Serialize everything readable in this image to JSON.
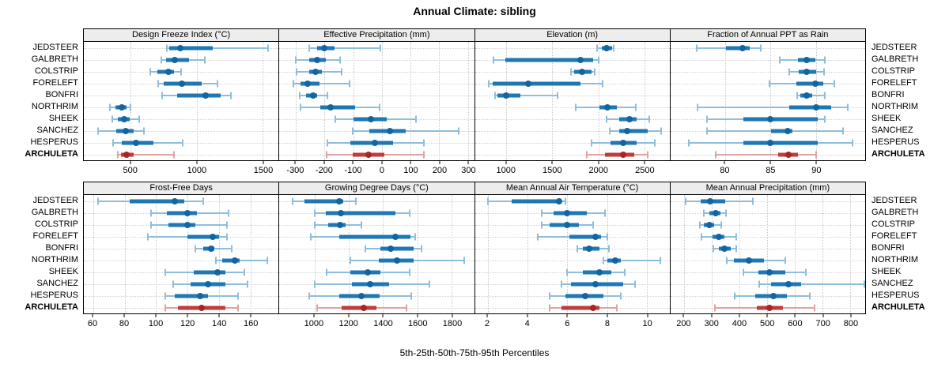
{
  "title": "Annual Climate: sibling",
  "caption": "5th-25th-50th-75th-95th Percentiles",
  "sites": [
    "JEDSTEER",
    "GALBRETH",
    "COLSTRIP",
    "FORELEFT",
    "BONFRI",
    "NORTHRIM",
    "SHEEK",
    "SANCHEZ",
    "HESPERUS",
    "ARCHULETA"
  ],
  "highlight_site": "ARCHULETA",
  "colors": {
    "normal_box": "#1f77b4",
    "normal_whisker": "#8fbedd",
    "normal_dot": "#14649f",
    "highlight_box": "#c23b3b",
    "highlight_whisker": "#e0a3a3",
    "highlight_dot": "#a82525",
    "grid": "#c9c9c9",
    "strip_bg": "#ededed",
    "border": "#000000"
  },
  "chart_data": [
    {
      "type": "percentile-dotplot",
      "row": "top",
      "title": "Design Freeze Index (°C)",
      "xlim": [
        145,
        1620
      ],
      "ticks": [
        500,
        1000,
        1500
      ],
      "percentiles": [
        "5th",
        "25th",
        "50th",
        "75th",
        "95th"
      ],
      "values": {
        "JEDSTEER": [
          774,
          790,
          874,
          1120,
          1540
        ],
        "GALBRETH": [
          730,
          766,
          834,
          940,
          1060
        ],
        "COLSTRIP": [
          646,
          700,
          784,
          830,
          880
        ],
        "FORELEFT": [
          710,
          750,
          890,
          1040,
          1156
        ],
        "BONFRI": [
          740,
          850,
          1070,
          1180,
          1260
        ],
        "NORTHRIM": [
          340,
          386,
          434,
          470,
          500
        ],
        "SHEEK": [
          360,
          400,
          450,
          490,
          566
        ],
        "SANCHEZ": [
          250,
          390,
          460,
          520,
          600
        ],
        "HESPERUS": [
          366,
          430,
          540,
          670,
          894
        ],
        "ARCHULETA": [
          400,
          426,
          470,
          520,
          830
        ]
      }
    },
    {
      "type": "percentile-dotplot",
      "row": "top",
      "title": "Effective Precipitation (mm)",
      "xlim": [
        -358,
        322
      ],
      "ticks": [
        -300,
        -200,
        -100,
        0,
        100,
        200,
        300
      ],
      "percentiles": [
        "5th",
        "25th",
        "50th",
        "75th",
        "95th"
      ],
      "values": {
        "JEDSTEER": [
          -255,
          -227,
          -202,
          -166,
          -5
        ],
        "GALBRETH": [
          -300,
          -253,
          -225,
          -196,
          -147
        ],
        "COLSTRIP": [
          -299,
          -255,
          -231,
          -209,
          -140
        ],
        "FORELEFT": [
          -308,
          -284,
          -260,
          -218,
          -113
        ],
        "BONFRI": [
          -288,
          -264,
          -240,
          -225,
          -189
        ],
        "NORTHRIM": [
          -284,
          -216,
          -178,
          -94,
          -7
        ],
        "SHEEK": [
          -163,
          -98,
          -39,
          17,
          119
        ],
        "SANCHEZ": [
          -103,
          -45,
          28,
          83,
          269
        ],
        "HESPERUS": [
          -189,
          -111,
          -25,
          39,
          147
        ],
        "ARCHULETA": [
          -193,
          -103,
          -48,
          8,
          147
        ]
      }
    },
    {
      "type": "percentile-dotplot",
      "row": "top",
      "title": "Elevation (m)",
      "xlim": [
        656,
        2777
      ],
      "ticks": [
        1000,
        1500,
        2000,
        2500
      ],
      "percentiles": [
        "5th",
        "25th",
        "50th",
        "75th",
        "95th"
      ],
      "values": {
        "JEDSTEER": [
          1985,
          2035,
          2090,
          2148,
          2170
        ],
        "GALBRETH": [
          855,
          990,
          1810,
          1940,
          2000
        ],
        "COLSTRIP": [
          1700,
          1740,
          1820,
          1925,
          1965
        ],
        "FORELEFT": [
          810,
          850,
          1240,
          1810,
          2050
        ],
        "BONFRI": [
          875,
          905,
          1000,
          1150,
          1555
        ],
        "NORTHRIM": [
          1756,
          2015,
          2102,
          2203,
          2405
        ],
        "SHEEK": [
          2087,
          2232,
          2338,
          2420,
          2558
        ],
        "SANCHEZ": [
          2125,
          2232,
          2318,
          2535,
          2685
        ],
        "HESPERUS": [
          1923,
          2131,
          2269,
          2420,
          2615
        ],
        "ARCHULETA": [
          1877,
          2073,
          2275,
          2390,
          2540
        ]
      }
    },
    {
      "type": "percentile-dotplot",
      "row": "top",
      "title": "Fraction of Annual PPT as Rain",
      "xlim": [
        74,
        95.4
      ],
      "ticks": [
        80,
        85,
        90
      ],
      "percentiles": [
        "5th",
        "25th",
        "50th",
        "75th",
        "95th"
      ],
      "values": {
        "JEDSTEER": [
          76.9,
          80.1,
          81.9,
          82.7,
          83.9
        ],
        "GALBRETH": [
          86.0,
          88.0,
          89.0,
          89.9,
          91.0
        ],
        "COLSTRIP": [
          87.1,
          88.1,
          89.0,
          90.0,
          90.9
        ],
        "FORELEFT": [
          84.9,
          87.8,
          89.9,
          90.8,
          92.0
        ],
        "BONFRI": [
          87.9,
          88.3,
          89.0,
          89.6,
          91.0
        ],
        "NORTHRIM": [
          77.0,
          87.1,
          90.0,
          91.7,
          93.5
        ],
        "SHEEK": [
          78.0,
          82.0,
          85.0,
          90.2,
          91.0
        ],
        "SANCHEZ": [
          78.0,
          85.1,
          86.9,
          87.4,
          93.0
        ],
        "HESPERUS": [
          76.0,
          82.0,
          85.0,
          90.2,
          94.0
        ],
        "ARCHULETA": [
          79.0,
          85.8,
          87.0,
          88.0,
          90.0
        ]
      }
    },
    {
      "type": "percentile-dotplot",
      "row": "bottom",
      "title": "Frost-Free Days",
      "xlim": [
        54,
        178
      ],
      "ticks": [
        60,
        80,
        100,
        120,
        140,
        160
      ],
      "percentiles": [
        "5th",
        "25th",
        "50th",
        "75th",
        "95th"
      ],
      "values": {
        "JEDSTEER": [
          63,
          83,
          112,
          118,
          130
        ],
        "GALBRETH": [
          97,
          107,
          120,
          126,
          146
        ],
        "COLSTRIP": [
          97,
          108,
          120,
          125,
          145
        ],
        "FORELEFT": [
          95,
          120,
          136,
          140,
          145
        ],
        "BONFRI": [
          125,
          130,
          135,
          137,
          148
        ],
        "NORTHRIM": [
          138,
          142,
          150,
          153,
          171
        ],
        "SHEEK": [
          106,
          124,
          139,
          144,
          156
        ],
        "SANCHEZ": [
          111,
          122,
          133,
          144,
          158
        ],
        "HESPERUS": [
          106,
          112,
          128,
          133,
          152
        ],
        "ARCHULETA": [
          106,
          114,
          129,
          144,
          152
        ]
      }
    },
    {
      "type": "percentile-dotplot",
      "row": "bottom",
      "title": "Growing Degree Days (°C)",
      "xlim": [
        796,
        1930
      ],
      "ticks": [
        1000,
        1200,
        1400,
        1600,
        1800
      ],
      "percentiles": [
        "5th",
        "25th",
        "50th",
        "75th",
        "95th"
      ],
      "values": {
        "JEDSTEER": [
          874,
          943,
          1143,
          1166,
          1240
        ],
        "GALBRETH": [
          1000,
          1066,
          1154,
          1474,
          1554
        ],
        "COLSTRIP": [
          1000,
          1082,
          1148,
          1182,
          1274
        ],
        "FORELEFT": [
          980,
          1143,
          1474,
          1560,
          1585
        ],
        "BONFRI": [
          1297,
          1382,
          1443,
          1580,
          1625
        ],
        "NORTHRIM": [
          1209,
          1374,
          1482,
          1578,
          1874
        ],
        "SHEEK": [
          1071,
          1209,
          1312,
          1385,
          1554
        ],
        "SANCHEZ": [
          1000,
          1220,
          1323,
          1435,
          1671
        ],
        "HESPERUS": [
          969,
          1143,
          1274,
          1382,
          1563
        ],
        "ARCHULETA": [
          1015,
          1158,
          1286,
          1363,
          1538
        ]
      }
    },
    {
      "type": "percentile-dotplot",
      "row": "bottom",
      "title": "Mean Annual Air Temperature (°C)",
      "xlim": [
        1.35,
        11.15
      ],
      "ticks": [
        2,
        4,
        6,
        8,
        10
      ],
      "percentiles": [
        "5th",
        "25th",
        "50th",
        "75th",
        "95th"
      ],
      "values": {
        "JEDSTEER": [
          2.0,
          3.2,
          5.6,
          5.7,
          5.9
        ],
        "GALBRETH": [
          4.7,
          5.3,
          6.0,
          7.0,
          7.9
        ],
        "COLSTRIP": [
          4.7,
          5.1,
          6.0,
          6.6,
          7.3
        ],
        "FORELEFT": [
          4.5,
          6.1,
          7.4,
          7.7,
          8.0
        ],
        "BONFRI": [
          6.5,
          6.8,
          7.1,
          7.6,
          8.1
        ],
        "NORTHRIM": [
          7.8,
          8.0,
          8.4,
          8.7,
          10.7
        ],
        "SHEEK": [
          6.0,
          6.8,
          7.6,
          8.2,
          8.9
        ],
        "SANCHEZ": [
          5.7,
          6.2,
          7.4,
          8.8,
          9.4
        ],
        "HESPERUS": [
          5.1,
          5.9,
          6.9,
          7.8,
          8.7
        ],
        "ARCHULETA": [
          5.1,
          5.7,
          7.3,
          7.6,
          8.5
        ]
      }
    },
    {
      "type": "percentile-dotplot",
      "row": "bottom",
      "title": "Mean Annual Precipitation (mm)",
      "xlim": [
        150,
        854
      ],
      "ticks": [
        200,
        300,
        400,
        500,
        600,
        700,
        800
      ],
      "percentiles": [
        "5th",
        "25th",
        "50th",
        "75th",
        "95th"
      ],
      "values": {
        "JEDSTEER": [
          205,
          260,
          295,
          347,
          448
        ],
        "GALBRETH": [
          271,
          292,
          313,
          330,
          351
        ],
        "COLSTRIP": [
          256,
          271,
          290,
          309,
          334
        ],
        "FORELEFT": [
          262,
          302,
          324,
          346,
          388
        ],
        "BONFRI": [
          305,
          324,
          346,
          368,
          388
        ],
        "NORTHRIM": [
          355,
          380,
          435,
          488,
          566
        ],
        "SHEEK": [
          415,
          467,
          508,
          566,
          640
        ],
        "SANCHEZ": [
          470,
          514,
          577,
          623,
          850
        ],
        "HESPERUS": [
          382,
          458,
          521,
          571,
          654
        ],
        "ARCHULETA": [
          310,
          462,
          508,
          557,
          672
        ]
      }
    }
  ]
}
